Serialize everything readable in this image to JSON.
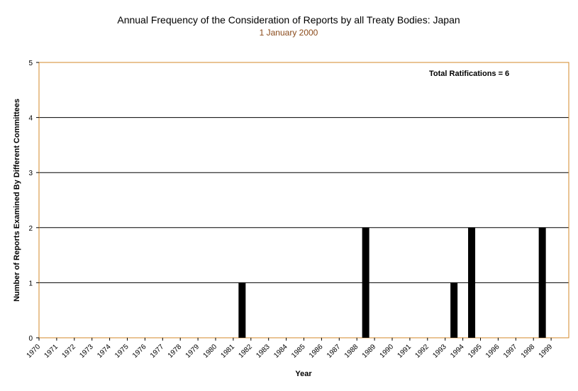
{
  "chart_data": {
    "type": "bar",
    "title": "Annual Frequency of the Consideration of Reports by all Treaty Bodies: Japan",
    "subtitle": "1 January 2000",
    "xlabel": "Year",
    "ylabel": "Number of Reports Examined By Different Committees",
    "annotation": "Total Ratifications = 6",
    "ylim": [
      0,
      5
    ],
    "yticks": [
      "0",
      "1",
      "2",
      "3",
      "4",
      "5"
    ],
    "grid": true,
    "categories": [
      "1970",
      "1971",
      "1972",
      "1973",
      "1974",
      "1975",
      "1976",
      "1977",
      "1978",
      "1979",
      "1980",
      "1981",
      "1982",
      "1983",
      "1984",
      "1985",
      "1986",
      "1987",
      "1988",
      "1989",
      "1990",
      "1991",
      "1992",
      "1993",
      "1994",
      "1995",
      "1996",
      "1997",
      "1998",
      "1999"
    ],
    "values": [
      0,
      0,
      0,
      0,
      0,
      0,
      0,
      0,
      0,
      0,
      0,
      1,
      0,
      0,
      0,
      0,
      0,
      0,
      2,
      0,
      0,
      0,
      0,
      1,
      2,
      0,
      0,
      0,
      2,
      0
    ],
    "colors": {
      "bar": "#000000",
      "plot_border": "#d38a2a",
      "grid": "#000000",
      "subtitle": "#8a4a1a"
    }
  }
}
